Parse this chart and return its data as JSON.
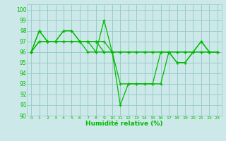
{
  "title": "",
  "xlabel": "Humidité relative (%)",
  "ylabel": "",
  "xlim": [
    -0.5,
    23.5
  ],
  "ylim": [
    90,
    100.5
  ],
  "yticks": [
    90,
    91,
    92,
    93,
    94,
    95,
    96,
    97,
    98,
    99,
    100
  ],
  "xticks": [
    0,
    1,
    2,
    3,
    4,
    5,
    6,
    7,
    8,
    9,
    10,
    11,
    12,
    13,
    14,
    15,
    16,
    17,
    18,
    19,
    20,
    21,
    22,
    23
  ],
  "bg_color": "#cce8e8",
  "grid_color": "#99cccc",
  "line_color": "#00bb00",
  "series": [
    [
      96,
      98,
      97,
      97,
      98,
      98,
      97,
      97,
      96,
      99,
      96,
      91,
      93,
      93,
      93,
      93,
      93,
      96,
      95,
      95,
      96,
      97,
      96,
      96
    ],
    [
      96,
      98,
      97,
      97,
      98,
      98,
      97,
      97,
      97,
      96,
      96,
      93,
      93,
      93,
      93,
      93,
      96,
      96,
      95,
      95,
      96,
      97,
      96,
      96
    ],
    [
      96,
      97,
      97,
      97,
      97,
      97,
      97,
      97,
      97,
      97,
      96,
      96,
      96,
      96,
      96,
      96,
      96,
      96,
      96,
      96,
      96,
      96,
      96,
      96
    ],
    [
      96,
      97,
      97,
      97,
      97,
      97,
      97,
      96,
      96,
      96,
      96,
      96,
      96,
      96,
      96,
      96,
      96,
      96,
      96,
      96,
      96,
      96,
      96,
      96
    ]
  ]
}
